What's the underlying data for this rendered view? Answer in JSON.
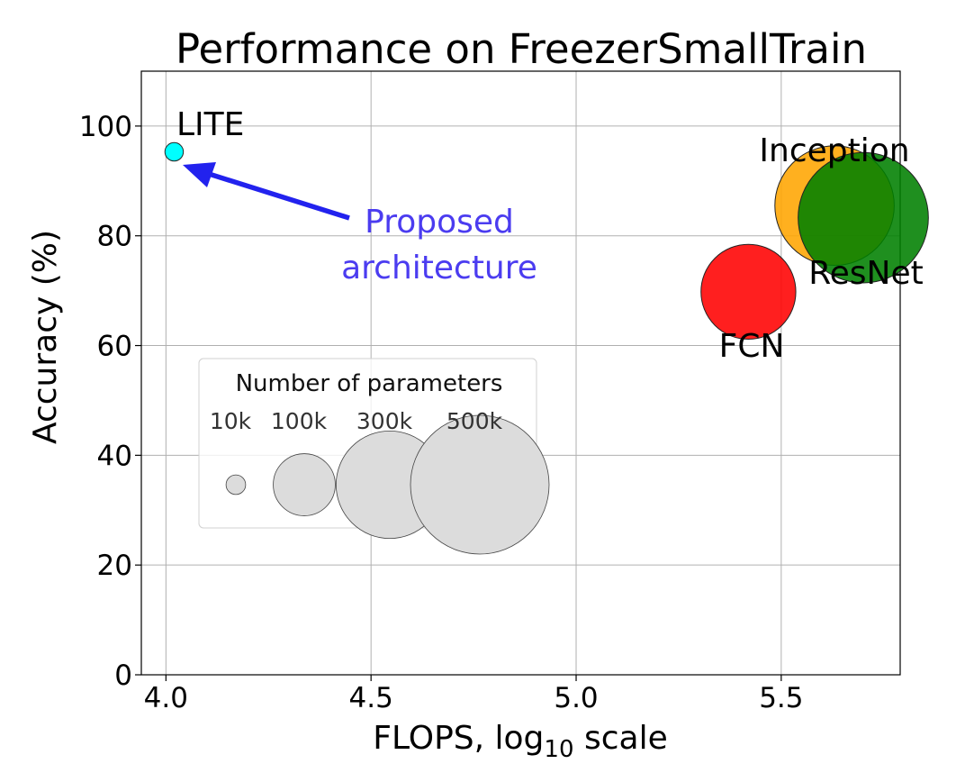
{
  "chart_data": {
    "type": "scatter",
    "title": "Performance on FreezerSmallTrain",
    "xlabel_main": "FLOPS, log",
    "xlabel_sub": "10",
    "xlabel_tail": " scale",
    "ylabel": "Accuracy (%)",
    "xlim": [
      3.94,
      5.79
    ],
    "ylim": [
      0,
      110
    ],
    "x_ticks": [
      4.0,
      4.5,
      5.0,
      5.5
    ],
    "x_tick_labels": [
      "4.0",
      "4.5",
      "5.0",
      "5.5"
    ],
    "y_ticks": [
      0,
      20,
      40,
      60,
      80,
      100
    ],
    "y_tick_labels": [
      "0",
      "20",
      "40",
      "60",
      "80",
      "100"
    ],
    "grid": true,
    "points": [
      {
        "label": "LITE",
        "x": 4.02,
        "y": 95.3,
        "params_k": 10,
        "color": "#00ffff"
      },
      {
        "label": "Inception",
        "x": 5.63,
        "y": 85.5,
        "params_k": 420,
        "color": "#ffa500"
      },
      {
        "label": "ResNet",
        "x": 5.7,
        "y": 83.3,
        "params_k": 500,
        "color": "#008000"
      },
      {
        "label": "FCN",
        "x": 5.42,
        "y": 69.8,
        "params_k": 265,
        "color": "#ff0000"
      }
    ],
    "annotation": {
      "lines": [
        "Proposed",
        "architecture"
      ],
      "color": "#2222ee",
      "text_color": "#4b3cf0",
      "points_to": "LITE"
    },
    "size_legend": {
      "title": "Number of parameters",
      "entries": [
        {
          "label": "10k",
          "params_k": 10
        },
        {
          "label": "100k",
          "params_k": 100
        },
        {
          "label": "300k",
          "params_k": 300
        },
        {
          "label": "500k",
          "params_k": 500
        }
      ],
      "placement": "lower-left"
    }
  }
}
